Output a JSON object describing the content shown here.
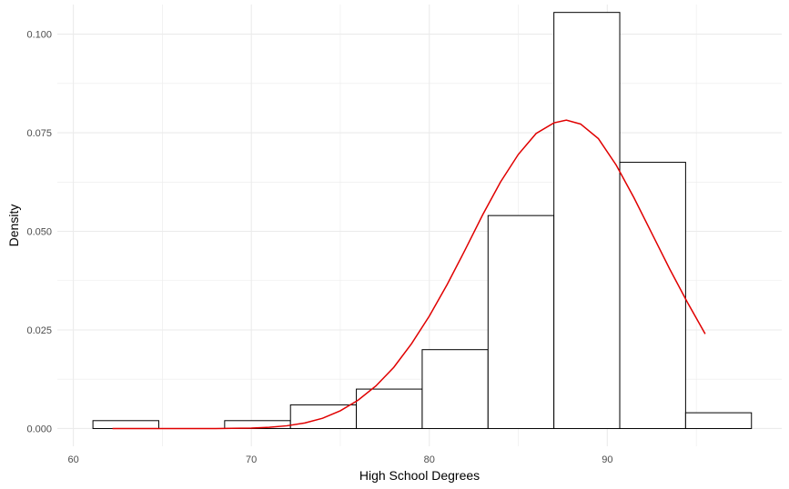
{
  "chart_data": {
    "type": "bar",
    "xlabel": "High School Degrees",
    "ylabel": "Density",
    "xlim": [
      59.1,
      99.8
    ],
    "ylim": [
      -0.0045,
      0.1075
    ],
    "x_ticks": [
      60,
      70,
      80,
      90
    ],
    "x_tick_labels": [
      "60",
      "70",
      "80",
      "90"
    ],
    "y_ticks": [
      0.0,
      0.025,
      0.05,
      0.075,
      0.1
    ],
    "y_tick_labels": [
      "0.000",
      "0.025",
      "0.050",
      "0.075",
      "0.100"
    ],
    "grid": true,
    "bins": [
      {
        "x0": 61.1,
        "x1": 64.8,
        "density": 0.002
      },
      {
        "x0": 64.8,
        "x1": 68.5,
        "density": 0.0
      },
      {
        "x0": 68.5,
        "x1": 72.2,
        "density": 0.002
      },
      {
        "x0": 72.2,
        "x1": 75.9,
        "density": 0.006
      },
      {
        "x0": 75.9,
        "x1": 79.6,
        "density": 0.01
      },
      {
        "x0": 79.6,
        "x1": 83.3,
        "density": 0.02
      },
      {
        "x0": 83.3,
        "x1": 87.0,
        "density": 0.054
      },
      {
        "x0": 87.0,
        "x1": 90.7,
        "density": 0.1055
      },
      {
        "x0": 90.7,
        "x1": 94.4,
        "density": 0.0675
      },
      {
        "x0": 94.4,
        "x1": 98.1,
        "density": 0.004
      }
    ],
    "density_curve": {
      "color": "#e00000",
      "x": [
        62.2,
        64,
        66,
        68,
        70,
        71,
        72,
        73,
        74,
        75,
        76,
        77,
        78,
        79,
        80,
        81,
        82,
        83,
        84,
        85,
        86,
        87,
        87.7,
        88.5,
        89.5,
        90.5,
        91.5,
        92.5,
        93.5,
        94.5,
        95.5
      ],
      "y": [
        0.0,
        0.0,
        0.0,
        0.0,
        0.0001,
        0.0003,
        0.0007,
        0.0014,
        0.0026,
        0.0045,
        0.0072,
        0.0108,
        0.0155,
        0.0215,
        0.0285,
        0.0365,
        0.0452,
        0.0542,
        0.0625,
        0.0695,
        0.0748,
        0.0775,
        0.0782,
        0.0772,
        0.0735,
        0.0668,
        0.0585,
        0.0495,
        0.0405,
        0.032,
        0.024
      ]
    },
    "colors": {
      "bar_stroke": "#000000",
      "bar_fill": "#ffffff",
      "grid": "#ebebeb"
    }
  }
}
